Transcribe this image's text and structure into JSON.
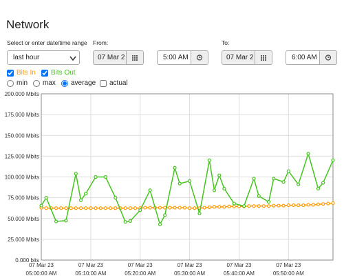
{
  "header": {
    "title": "Network"
  },
  "range": {
    "label": "Select or enter date/time range",
    "selected": "last hour"
  },
  "from": {
    "label": "From:",
    "date": "07 Mar 2",
    "time": "5:00 AM"
  },
  "to": {
    "label": "To:",
    "date": "07 Mar 2",
    "time": "6:00 AM"
  },
  "modes": [
    "min",
    "max",
    "average",
    "actual"
  ],
  "chart_data": {
    "type": "line",
    "xlim": [
      0,
      59
    ],
    "xticks": [
      {
        "value": 0,
        "label": "05:00:00 AM"
      },
      {
        "value": 10,
        "label": "05:10:00 AM"
      },
      {
        "value": 20,
        "label": "05:20:00 AM"
      },
      {
        "value": 30,
        "label": "05:30:00 AM"
      },
      {
        "value": 40,
        "label": "05:40:00 AM"
      },
      {
        "value": 50,
        "label": "05:50:00 AM"
      }
    ],
    "xtick_dates": [
      "07 Mar 23",
      "07 Mar 23",
      "07 Mar 23",
      "07 Mar 23",
      "07 Mar 23",
      "07 Mar 23"
    ],
    "ylim": [
      0,
      200
    ],
    "yticks": [
      {
        "value": 0,
        "label": "0.000 bits"
      },
      {
        "value": 25,
        "label": "25.000 Mbits"
      },
      {
        "value": 50,
        "label": "50.000 Mbits"
      },
      {
        "value": 75,
        "label": "75.000 Mbits"
      },
      {
        "value": 100,
        "label": "100.000 Mbits"
      },
      {
        "value": 125,
        "label": "125.000 Mbits"
      },
      {
        "value": 150,
        "label": "150.000 Mbits"
      },
      {
        "value": 175,
        "label": "175.000 Mbits"
      },
      {
        "value": 200,
        "label": "200.000 Mbits"
      }
    ],
    "grid": true,
    "series": [
      {
        "name": "Bits In",
        "color": "#ff9900",
        "x": [
          0,
          1,
          2,
          3,
          4,
          5,
          6,
          7,
          8,
          9,
          10,
          11,
          12,
          13,
          14,
          15,
          16,
          17,
          18,
          19,
          20,
          21,
          22,
          23,
          24,
          25,
          26,
          27,
          28,
          29,
          30,
          31,
          32,
          33,
          34,
          35,
          36,
          37,
          38,
          39,
          40,
          41,
          42,
          43,
          44,
          45,
          46,
          47,
          48,
          49,
          50,
          51,
          52,
          53,
          54,
          55,
          56,
          57,
          58,
          59
        ],
        "values": [
          63,
          62.5,
          62.5,
          62.5,
          62.5,
          62.5,
          62.5,
          62.5,
          62.5,
          62.5,
          62.5,
          62.5,
          62.5,
          62.5,
          62.5,
          62.5,
          62.5,
          62.5,
          62.5,
          62.5,
          62.5,
          63,
          63,
          63,
          63,
          63,
          63,
          63,
          63,
          63,
          62.5,
          62.5,
          62.5,
          63,
          63.5,
          64,
          64,
          64,
          64.5,
          64.5,
          64.5,
          64.5,
          65,
          65,
          65,
          65,
          65,
          65.5,
          65.5,
          65.5,
          66,
          66,
          66,
          66,
          66.5,
          66.5,
          67,
          67.5,
          68,
          68.5
        ]
      },
      {
        "name": "Bits Out",
        "color": "#44c41c",
        "x": [
          0,
          1,
          3,
          5,
          7,
          8,
          9,
          11,
          13,
          15,
          17,
          18,
          20,
          22,
          24,
          25,
          27,
          28,
          30,
          32,
          34,
          35,
          36,
          37,
          39,
          41,
          43,
          44,
          46,
          47,
          49,
          50,
          52,
          54,
          56,
          57,
          59
        ],
        "values": [
          65.5,
          75,
          46.5,
          47.5,
          104,
          72,
          80,
          100,
          100,
          75,
          46,
          47,
          60,
          84,
          43,
          54,
          111,
          92,
          95,
          56,
          120,
          84,
          102,
          86,
          68,
          65,
          98,
          77,
          70,
          98,
          94,
          107,
          91,
          128,
          86,
          93,
          120
        ]
      }
    ]
  }
}
